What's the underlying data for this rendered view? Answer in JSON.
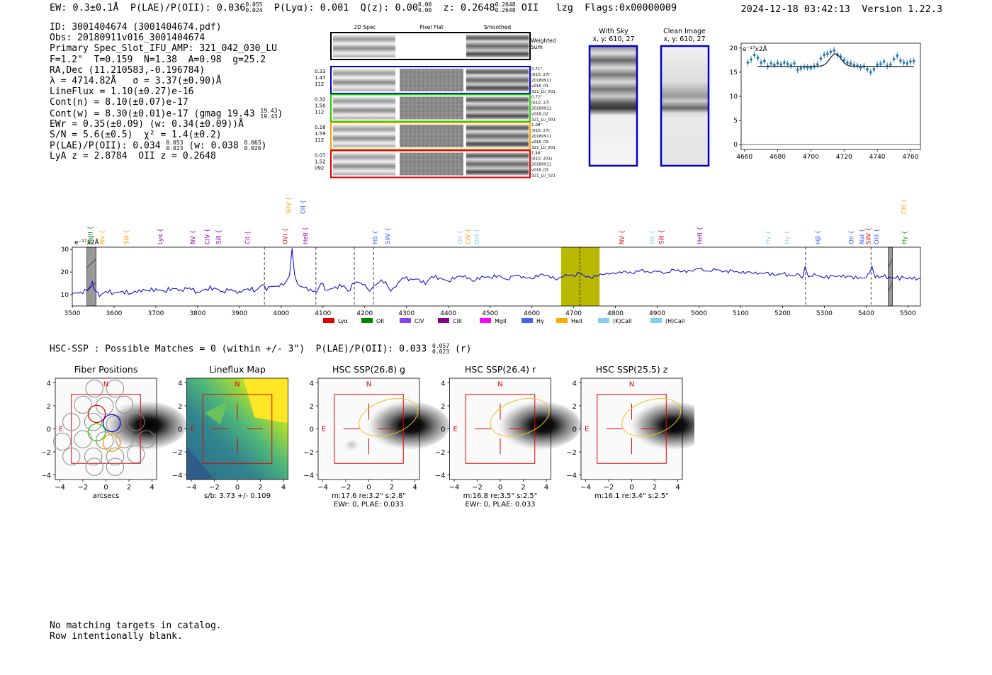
{
  "header": {
    "ew": "EW: 0.3±0.1Å",
    "plae_label": "P(LAE)/P(OII): 0.036",
    "plae_hi": "0.055",
    "plae_lo": "0.024",
    "plya": "P(Lyα): 0.001",
    "qz_label": "Q(z): 0.00",
    "qz_hi": "0.00",
    "qz_lo": "0.00",
    "z_label": "z: 0.2648",
    "z_hi": "0.2648",
    "z_lo": "0.2648",
    "z_line": "OII",
    "lzg": "lzg",
    "flags": "Flags:0x00000009",
    "datetime": "2024-12-18 03:42:13",
    "version": "Version 1.22.3"
  },
  "info": {
    "id": "ID: 3001404674 (3001404674.pdf)",
    "obs": "Obs: 20180911v016_3001404674",
    "primary": "Primary Spec_Slot_IFU_AMP: 321_042_030_LU",
    "params": "F=1.2\"  T=0.159  N=1.38  A=0.98  g=25.2",
    "radec": "RA,Dec (11.210583,-0.196784)",
    "lambda": "λ = 4714.82Å   σ = 3.37(±0.90)Å",
    "lineflux": "LineFlux = 1.10(±0.27)e-16",
    "contn": "Cont(n) = 8.10(±0.07)e-17",
    "contw_pre": "Cont(w) = 8.30(±0.01)e-17 (gmag 19.43",
    "contw_hi": "19.43",
    "contw_lo": "19.43",
    "contw_post": ")",
    "ewr": "EWr = 0.35(±0.09) (w: 0.34(±0.09))Å",
    "sn": "S/N = 5.6(±0.5)  χ² = 1.4(±0.2)",
    "plae_pre": "P(LAE)/P(OII): 0.034",
    "plae_hi": "0.053",
    "plae_lo": "0.023",
    "plae_mid": "(w: 0.038",
    "plae_w_hi": "0.065",
    "plae_w_lo": "0.026",
    "plae_post": ")",
    "lyaz": "LyA z = 2.8784  OII z = 0.2648"
  },
  "cutouts": {
    "col_titles": [
      "2D Spec",
      "Pixel Flat",
      "Smoothed"
    ],
    "weighted_sum": [
      "Weighted",
      "Sum"
    ],
    "rows": [
      {
        "left": [
          "0.33",
          "1.47",
          "112"
        ],
        "right": [
          "0.71\"",
          "(610, 27)",
          "20180911",
          "v016_01",
          "321_LU_001"
        ],
        "color": "#0000cc"
      },
      {
        "left": [
          "0.32",
          "1.50",
          "112"
        ],
        "right": [
          "0.72\"",
          "(610, 27)",
          "20180911",
          "v016_02",
          "321_LU_001"
        ],
        "color": "#22cc00"
      },
      {
        "left": [
          "0.16",
          "1.59",
          "112"
        ],
        "right": [
          "1.08\"",
          "(610, 27)",
          "20180911",
          "v016_03",
          "321_LU_001"
        ],
        "color": "#ff9900"
      },
      {
        "left": [
          "0.07",
          "1.52",
          "092"
        ],
        "right": [
          "1.46\"",
          "(610, 201)",
          "20180911",
          "v016_03",
          "321_LU_021"
        ],
        "color": "#e00000"
      }
    ]
  },
  "sky": {
    "with_sky_title": "With Sky",
    "with_sky_coord": "x, y: 610, 27",
    "clean_title": "Clean Image",
    "clean_coord": "x, y: 610, 27"
  },
  "zoom_chart": {
    "type": "scatter",
    "unit_label": "e⁻¹⁷x2Å",
    "xlim": [
      4658,
      4766
    ],
    "ylim": [
      -1,
      21
    ],
    "xticks": [
      4660,
      4680,
      4700,
      4720,
      4740,
      4760
    ],
    "yticks": [
      0,
      5,
      10,
      15,
      20
    ],
    "points": [
      [
        4662,
        17.0
      ],
      [
        4664,
        17.6
      ],
      [
        4666,
        18.6
      ],
      [
        4668,
        18.0
      ],
      [
        4670,
        17.0
      ],
      [
        4672,
        17.3
      ],
      [
        4674,
        16.2
      ],
      [
        4676,
        16.8
      ],
      [
        4678,
        16.5
      ],
      [
        4680,
        16.9
      ],
      [
        4682,
        16.6
      ],
      [
        4684,
        17.0
      ],
      [
        4686,
        16.7
      ],
      [
        4688,
        16.4
      ],
      [
        4690,
        16.8
      ],
      [
        4692,
        15.5
      ],
      [
        4694,
        15.8
      ],
      [
        4696,
        16.1
      ],
      [
        4698,
        16.0
      ],
      [
        4700,
        15.9
      ],
      [
        4702,
        16.2
      ],
      [
        4704,
        16.6
      ],
      [
        4706,
        17.8
      ],
      [
        4708,
        18.6
      ],
      [
        4710,
        18.8
      ],
      [
        4712,
        19.2
      ],
      [
        4714,
        19.5
      ],
      [
        4716,
        18.6
      ],
      [
        4718,
        18.2
      ],
      [
        4720,
        17.5
      ],
      [
        4722,
        17.0
      ],
      [
        4724,
        16.8
      ],
      [
        4726,
        16.5
      ],
      [
        4728,
        16.3
      ],
      [
        4730,
        16.0
      ],
      [
        4732,
        16.2
      ],
      [
        4734,
        15.6
      ],
      [
        4736,
        15.0
      ],
      [
        4738,
        15.6
      ],
      [
        4740,
        16.5
      ],
      [
        4742,
        16.7
      ],
      [
        4744,
        17.2
      ],
      [
        4746,
        16.3
      ],
      [
        4748,
        16.6
      ],
      [
        4750,
        17.7
      ],
      [
        4752,
        18.4
      ],
      [
        4754,
        17.4
      ],
      [
        4756,
        17.0
      ],
      [
        4758,
        16.8
      ],
      [
        4760,
        17.2
      ],
      [
        4762,
        17.3
      ]
    ],
    "fit": {
      "continuum": 16.2,
      "center": 4714.8,
      "sigma": 3.37,
      "amplitude": 2.6,
      "x_range": [
        4668,
        4762
      ]
    }
  },
  "spectrum_chart": {
    "type": "line",
    "unit_label": "e⁻¹⁷x2Å",
    "xlim": [
      3500,
      5530
    ],
    "ylim": [
      5,
      31
    ],
    "xticks": [
      3500,
      3600,
      3700,
      3800,
      3900,
      4000,
      4100,
      4200,
      4300,
      4400,
      4500,
      4600,
      4700,
      4800,
      4900,
      5000,
      5100,
      5200,
      5300,
      5400,
      5500
    ],
    "yticks": [
      10,
      20,
      30
    ],
    "color": "#0000dd",
    "highlight": {
      "from": 4670,
      "to": 4762,
      "color": "#b8b800",
      "center": 4714.8
    },
    "gray_bands": [
      [
        3535,
        3557
      ],
      [
        5453,
        5463
      ]
    ],
    "dashed_lines": [
      3960,
      4083,
      4175,
      4221,
      5255,
      5412
    ],
    "points": [
      [
        3500,
        10.5
      ],
      [
        3520,
        11.2
      ],
      [
        3535,
        11.8
      ],
      [
        3545,
        14
      ],
      [
        3548,
        16
      ],
      [
        3552,
        12.5
      ],
      [
        3565,
        9.2
      ],
      [
        3580,
        11.5
      ],
      [
        3600,
        10.8
      ],
      [
        3620,
        11.6
      ],
      [
        3640,
        10.4
      ],
      [
        3660,
        12.2
      ],
      [
        3680,
        11.8
      ],
      [
        3700,
        12.6
      ],
      [
        3720,
        11.6
      ],
      [
        3740,
        12.8
      ],
      [
        3760,
        12.2
      ],
      [
        3780,
        13.0
      ],
      [
        3800,
        11.2
      ],
      [
        3820,
        12.5
      ],
      [
        3840,
        13.0
      ],
      [
        3860,
        11.5
      ],
      [
        3880,
        12.4
      ],
      [
        3895,
        10.5
      ],
      [
        3900,
        11.5
      ],
      [
        3920,
        12.6
      ],
      [
        3940,
        12.0
      ],
      [
        3955,
        14.5
      ],
      [
        3965,
        11.8
      ],
      [
        3975,
        13.5
      ],
      [
        3990,
        13.8
      ],
      [
        4000,
        15.0
      ],
      [
        4010,
        15.2
      ],
      [
        4020,
        18.5
      ],
      [
        4026,
        30.5
      ],
      [
        4032,
        19
      ],
      [
        4040,
        14.5
      ],
      [
        4055,
        13.0
      ],
      [
        4070,
        12.5
      ],
      [
        4085,
        11.0
      ],
      [
        4095,
        15.0
      ],
      [
        4110,
        12.0
      ],
      [
        4130,
        13.5
      ],
      [
        4150,
        14.0
      ],
      [
        4160,
        11.5
      ],
      [
        4175,
        15.0
      ],
      [
        4185,
        15.5
      ],
      [
        4200,
        14.5
      ],
      [
        4212,
        11.5
      ],
      [
        4222,
        14.0
      ],
      [
        4235,
        15.5
      ],
      [
        4250,
        15.8
      ],
      [
        4262,
        11.5
      ],
      [
        4275,
        13.5
      ],
      [
        4290,
        17.5
      ],
      [
        4310,
        17.0
      ],
      [
        4330,
        16.8
      ],
      [
        4345,
        14.5
      ],
      [
        4360,
        18.0
      ],
      [
        4380,
        17.5
      ],
      [
        4400,
        16.0
      ],
      [
        4420,
        17.8
      ],
      [
        4440,
        18.5
      ],
      [
        4460,
        15.8
      ],
      [
        4480,
        18.2
      ],
      [
        4500,
        17.6
      ],
      [
        4520,
        18.4
      ],
      [
        4540,
        16.8
      ],
      [
        4560,
        18.6
      ],
      [
        4580,
        18.0
      ],
      [
        4600,
        17.0
      ],
      [
        4620,
        19.0
      ],
      [
        4640,
        18.5
      ],
      [
        4660,
        16.5
      ],
      [
        4680,
        19.0
      ],
      [
        4700,
        18.2
      ],
      [
        4714,
        19.5
      ],
      [
        4725,
        18.5
      ],
      [
        4740,
        17.5
      ],
      [
        4760,
        18.5
      ],
      [
        4780,
        19.6
      ],
      [
        4800,
        19.2
      ],
      [
        4820,
        20.4
      ],
      [
        4840,
        19.4
      ],
      [
        4860,
        20.8
      ],
      [
        4880,
        20.0
      ],
      [
        4900,
        20.2
      ],
      [
        4920,
        19.6
      ],
      [
        4940,
        21.0
      ],
      [
        4960,
        20.2
      ],
      [
        4980,
        20.6
      ],
      [
        5000,
        21.4
      ],
      [
        5020,
        20.4
      ],
      [
        5040,
        21.0
      ],
      [
        5060,
        20.2
      ],
      [
        5080,
        20.6
      ],
      [
        5100,
        19.4
      ],
      [
        5120,
        20.2
      ],
      [
        5140,
        19.0
      ],
      [
        5160,
        19.8
      ],
      [
        5180,
        18.6
      ],
      [
        5200,
        19.2
      ],
      [
        5220,
        18.4
      ],
      [
        5240,
        18.8
      ],
      [
        5248,
        17.5
      ],
      [
        5254,
        22.5
      ],
      [
        5262,
        17.8
      ],
      [
        5280,
        18.6
      ],
      [
        5300,
        17.4
      ],
      [
        5320,
        18.4
      ],
      [
        5340,
        17.8
      ],
      [
        5360,
        18.2
      ],
      [
        5380,
        17.0
      ],
      [
        5400,
        17.6
      ],
      [
        5408,
        19.5
      ],
      [
        5414,
        22.5
      ],
      [
        5422,
        17.5
      ],
      [
        5440,
        18.0
      ],
      [
        5470,
        17.2
      ],
      [
        5490,
        17.6
      ],
      [
        5510,
        16.8
      ],
      [
        5530,
        17.2
      ]
    ],
    "line_labels": [
      {
        "text": "MgII",
        "x": 3543,
        "row": "low",
        "color": "#008800"
      },
      {
        "text": "NV",
        "x": 3572,
        "row": "low",
        "color": "#ff9900"
      },
      {
        "text": "SiII",
        "x": 3630,
        "row": "low",
        "color": "#ff9900"
      },
      {
        "text": "Lyα",
        "x": 3710,
        "row": "low",
        "color": "#8800aa"
      },
      {
        "text": "NV",
        "x": 3788,
        "row": "low",
        "color": "#8800aa"
      },
      {
        "text": "CIV",
        "x": 3823,
        "row": "low",
        "color": "#8800aa"
      },
      {
        "text": "SiII",
        "x": 3850,
        "row": "low",
        "color": "#8800aa"
      },
      {
        "text": "CII",
        "x": 3920,
        "row": "low",
        "color": "#cc00cc"
      },
      {
        "text": "OVI",
        "x": 4010,
        "row": "low",
        "color": "#e00000"
      },
      {
        "text": "HeII",
        "x": 4058,
        "row": "low",
        "color": "#8800aa"
      },
      {
        "text": "SiIV",
        "x": 4018,
        "row": "high",
        "color": "#ff9900"
      },
      {
        "text": "OII",
        "x": 4052,
        "row": "high",
        "color": "#3355ff"
      },
      {
        "text": "Hδ",
        "x": 4225,
        "row": "low",
        "color": "#3355ff"
      },
      {
        "text": "SiIV",
        "x": 4255,
        "row": "low",
        "color": "#3355ff"
      },
      {
        "text": "OII",
        "x": 4428,
        "row": "low",
        "color": "#88ccee"
      },
      {
        "text": "CIV",
        "x": 4447,
        "row": "low",
        "color": "#ff9900"
      },
      {
        "text": "OIII",
        "x": 4468,
        "row": "low",
        "color": "#88ccee"
      },
      {
        "text": "NV",
        "x": 4815,
        "row": "low",
        "color": "#e00000"
      },
      {
        "text": "H6",
        "x": 4888,
        "row": "low",
        "color": "#88ccee"
      },
      {
        "text": "SiII",
        "x": 4910,
        "row": "low",
        "color": "#e00000"
      },
      {
        "text": "HeII",
        "x": 5002,
        "row": "low",
        "color": "#8800aa"
      },
      {
        "text": "Hγ",
        "x": 5165,
        "row": "low",
        "color": "#88ccee"
      },
      {
        "text": "Hγ",
        "x": 5210,
        "row": "low",
        "color": "#88ccee"
      },
      {
        "text": "Hβ",
        "x": 5285,
        "row": "low",
        "color": "#3355ff"
      },
      {
        "text": "OII",
        "x": 5365,
        "row": "low",
        "color": "#3355ff"
      },
      {
        "text": "NaI",
        "x": 5390,
        "row": "low",
        "color": "#3355ff"
      },
      {
        "text": "SiIV",
        "x": 5405,
        "row": "low",
        "color": "#e00000"
      },
      {
        "text": "OIII",
        "x": 5425,
        "row": "low",
        "color": "#3355ff"
      },
      {
        "text": "Hγ",
        "x": 5492,
        "row": "low",
        "color": "#008800"
      },
      {
        "text": "CIII",
        "x": 5490,
        "row": "high",
        "color": "#ff9900"
      }
    ],
    "legend": [
      {
        "label": "Lyα",
        "color": "#e00000"
      },
      {
        "label": "OII",
        "color": "#008800"
      },
      {
        "label": "CIV",
        "color": "#8844ee"
      },
      {
        "label": "CIII",
        "color": "#880088"
      },
      {
        "label": "MgII",
        "color": "#ff00ff"
      },
      {
        "label": "Hγ",
        "color": "#4466ee"
      },
      {
        "label": "HeII",
        "color": "#ffaa00"
      },
      {
        "label": "(K)CaII",
        "color": "#88ccee"
      },
      {
        "label": "(H)CaII",
        "color": "#88ccee"
      }
    ]
  },
  "hsc": {
    "summary_pre": "HSC-SSP : Possible Matches = 0 (within +/- 3\")  P(LAE)/P(OII): 0.033",
    "summary_hi": "0.057",
    "summary_lo": "0.023",
    "summary_post": "(r)",
    "panels": [
      {
        "title": "Fiber Positions",
        "caption": [
          "arcsecs"
        ]
      },
      {
        "title": "Lineflux Map",
        "caption": [
          "s/b: 3.73 +/- 0.109"
        ]
      },
      {
        "title": "HSC SSP(26.8) g",
        "caption": [
          "m:17.6  re:3.2\"  s:2.8\"",
          "EWr: 0, PLAE: 0.033"
        ]
      },
      {
        "title": "HSC SSP(26.4) r",
        "caption": [
          "m:16.8  re:3.5\"  s:2.5\"",
          "EWr: 0, PLAE: 0.033"
        ]
      },
      {
        "title": "HSC SSP(25.5) z",
        "caption": [
          "m:16.1  re:3.4\"  s:2.5\""
        ]
      }
    ],
    "ticks": [
      "−4",
      "−2",
      "0",
      "2",
      "4"
    ],
    "north": "N",
    "east": "E"
  },
  "bottom_note": [
    "No matching targets in catalog.",
    "Row intentionally blank."
  ]
}
